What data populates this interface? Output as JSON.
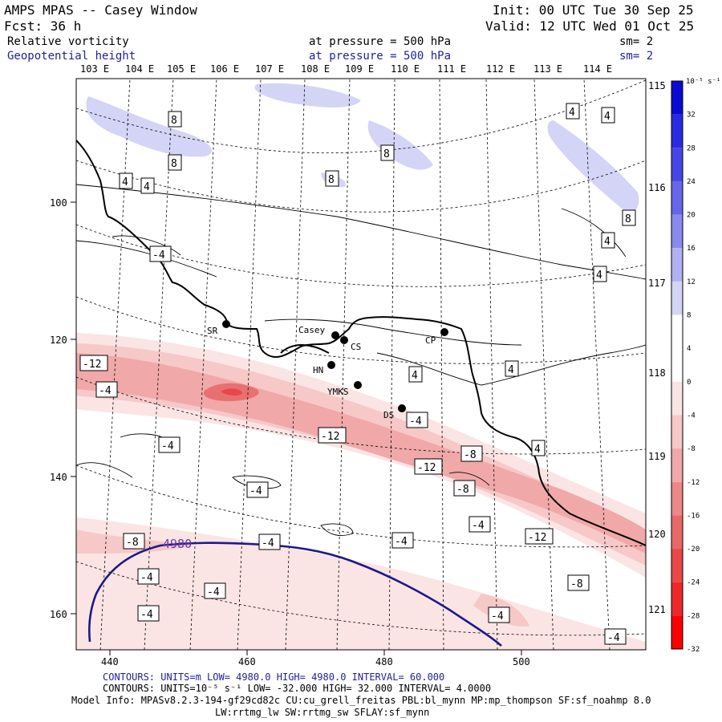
{
  "header": {
    "model": "AMPS MPAS -- Casey Window",
    "init": "Init: 00 UTC Tue 30 Sep 25",
    "fcst": "Fcst:   36 h",
    "valid": "Valid: 12 UTC Wed 01 Oct 25",
    "field1": "Relative vorticity",
    "field1_level": "at pressure =  500 hPa",
    "field1_sm": "sm= 2",
    "field2": "Geopotential height",
    "field2_level": "at pressure =  500 hPa",
    "field2_sm": "sm= 2"
  },
  "axes": {
    "top_lon_labels": [
      "103 E",
      "104 E",
      "105 E",
      "106 E",
      "107 E",
      "108 E",
      "109 E",
      "110 E",
      "111 E",
      "112 E",
      "113 E",
      "114 E"
    ],
    "right_lon_labels": [
      "115 E",
      "116 E",
      "117 E",
      "118 E",
      "119 E",
      "120 E",
      "121 E"
    ],
    "left_ticks": [
      "100",
      "120",
      "140",
      "160"
    ],
    "bottom_ticks": [
      "440",
      "460",
      "480",
      "500"
    ]
  },
  "stations": [
    {
      "code": "SR"
    },
    {
      "code": "Casey"
    },
    {
      "code": "CS"
    },
    {
      "code": "CP"
    },
    {
      "code": "HN"
    },
    {
      "code": "YMKS"
    },
    {
      "code": "DS"
    }
  ],
  "contour_labels": {
    "pos8": [
      "8",
      "8",
      "8",
      "8",
      "8"
    ],
    "pos4": [
      "4",
      "4",
      "4",
      "4",
      "4",
      "4",
      "4",
      "4",
      "4"
    ],
    "neg4": [
      "-4",
      "-4",
      "-4",
      "-4",
      "-4",
      "-4",
      "-4",
      "-4",
      "-4",
      "-4",
      "-4",
      "-4",
      "-4"
    ],
    "neg8": [
      "-8",
      "-8",
      "-8",
      "-8"
    ],
    "neg12": [
      "-12",
      "-12",
      "-12",
      "-12"
    ],
    "height": "4980"
  },
  "colorbar": {
    "unit": "10⁻⁵ s⁻¹",
    "labels": [
      "32",
      "28",
      "24",
      "20",
      "16",
      "12",
      "8",
      "4",
      "0",
      "-4",
      "-8",
      "-12",
      "-16",
      "-20",
      "-24",
      "-28",
      "-32"
    ],
    "colors": [
      "#0a0ad2",
      "#2a2ae0",
      "#4646e6",
      "#6666ea",
      "#8a8aee",
      "#b0b0f2",
      "#d4d4f7",
      "#ffffff",
      "#ffffff",
      "#fbe4e4",
      "#f6c8c8",
      "#f0a8a8",
      "#ec8888",
      "#e86868",
      "#e84848",
      "#ec2828",
      "#ff0000"
    ]
  },
  "footer": {
    "line1": "CONTOURS:  UNITS=m  LOW=  4980.0          HIGH=  4980.0          INTERVAL=   60.000",
    "line2": "CONTOURS:  UNITS=10⁻⁵ s⁻¹  LOW= -32.000          HIGH=  32.000          INTERVAL=   4.0000",
    "line3": "Model Info: MPASv8.2.3-194-gf29cd82c CU:cu_grell_freitas PBL:bl_mynn MP:mp_thompson SF:sf_noahmp 8.0",
    "line4": "LW:rrtmg_lw SW:rrtmg_sw SFLAY:sf_mynn"
  }
}
